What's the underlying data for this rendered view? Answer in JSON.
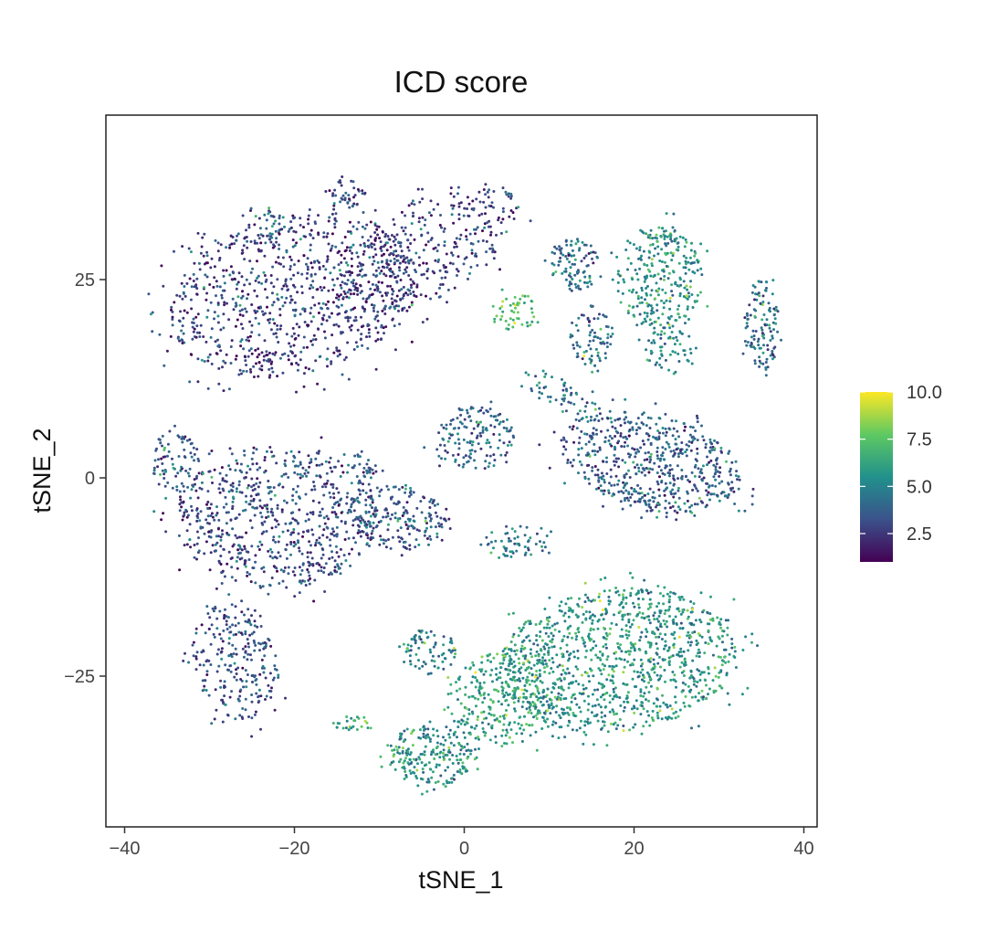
{
  "chart_data": {
    "type": "scatter",
    "title": "ICD score",
    "xlabel": "tSNE_1",
    "ylabel": "tSNE_2",
    "xlim": [
      -41,
      42
    ],
    "ylim": [
      -44,
      46
    ],
    "x_ticks": [
      -40,
      -20,
      0,
      20,
      40
    ],
    "x_tick_labels": [
      "−40",
      "−20",
      "0",
      "20",
      "40"
    ],
    "y_ticks": [
      -25,
      0,
      25
    ],
    "y_tick_labels": [
      "−25",
      "0",
      "25"
    ],
    "grid": false,
    "color_scale": {
      "name": "viridis",
      "range": [
        1,
        10
      ],
      "ticks": [
        2.5,
        5.0,
        7.5,
        10.0
      ],
      "tick_labels": [
        "2.5",
        "5.0",
        "7.5",
        "10.0"
      ],
      "colors": [
        "#440154",
        "#3b528b",
        "#21918c",
        "#5ec962",
        "#fde725"
      ],
      "legend_position": "right"
    },
    "clusters": [
      {
        "cx": -20,
        "cy": 23,
        "rx": 15,
        "ry": 10,
        "angle": 15,
        "n": 900,
        "score": 2.6
      },
      {
        "cx": -4,
        "cy": 29,
        "rx": 12,
        "ry": 6,
        "angle": 32,
        "n": 350,
        "score": 2.7
      },
      {
        "cx": -14,
        "cy": 36,
        "rx": 2.5,
        "ry": 2,
        "angle": 0,
        "n": 40,
        "score": 3.0
      },
      {
        "cx": -24,
        "cy": 32,
        "rx": 3,
        "ry": 2.5,
        "angle": 0,
        "n": 35,
        "score": 3.3
      },
      {
        "cx": -22,
        "cy": -5,
        "rx": 12,
        "ry": 9,
        "angle": 0,
        "n": 700,
        "score": 3.1
      },
      {
        "cx": -8,
        "cy": -5,
        "rx": 6,
        "ry": 4,
        "angle": -10,
        "n": 200,
        "score": 3.3
      },
      {
        "cx": -27,
        "cy": -23,
        "rx": 5,
        "ry": 8,
        "angle": 10,
        "n": 250,
        "score": 3.2
      },
      {
        "cx": -34,
        "cy": 2,
        "rx": 3,
        "ry": 4,
        "angle": 0,
        "n": 80,
        "score": 3.5
      },
      {
        "cx": 1,
        "cy": 5,
        "rx": 5,
        "ry": 4,
        "angle": 0,
        "n": 150,
        "score": 3.8
      },
      {
        "cx": 22,
        "cy": 2,
        "rx": 11,
        "ry": 6,
        "angle": -18,
        "n": 600,
        "score": 3.6
      },
      {
        "cx": 12,
        "cy": 10,
        "rx": 5,
        "ry": 2,
        "angle": -30,
        "n": 60,
        "score": 4.2
      },
      {
        "cx": 13,
        "cy": 27,
        "rx": 3,
        "ry": 3.5,
        "angle": 0,
        "n": 100,
        "score": 4.0
      },
      {
        "cx": 15,
        "cy": 18,
        "rx": 2.5,
        "ry": 4,
        "angle": 0,
        "n": 80,
        "score": 4.2
      },
      {
        "cx": 23,
        "cy": 25,
        "rx": 5,
        "ry": 7,
        "angle": 0,
        "n": 300,
        "score": 5.4
      },
      {
        "cx": 35,
        "cy": 19,
        "rx": 2,
        "ry": 6,
        "angle": 0,
        "n": 120,
        "score": 4.2
      },
      {
        "cx": 6,
        "cy": 21,
        "rx": 3,
        "ry": 2.5,
        "angle": 0,
        "n": 50,
        "score": 7.2
      },
      {
        "cx": 18,
        "cy": -23,
        "rx": 14,
        "ry": 9,
        "angle": 8,
        "n": 1100,
        "score": 5.6
      },
      {
        "cx": 5,
        "cy": -28,
        "rx": 7,
        "ry": 6,
        "angle": 0,
        "n": 300,
        "score": 6.0
      },
      {
        "cx": -4,
        "cy": -35,
        "rx": 5,
        "ry": 4,
        "angle": 0,
        "n": 220,
        "score": 5.5
      },
      {
        "cx": -4,
        "cy": -22,
        "rx": 3,
        "ry": 3,
        "angle": 0,
        "n": 80,
        "score": 4.5
      },
      {
        "cx": 6,
        "cy": -8,
        "rx": 4,
        "ry": 2,
        "angle": 0,
        "n": 60,
        "score": 4.4
      },
      {
        "cx": -13,
        "cy": -31,
        "rx": 2.5,
        "ry": 1,
        "angle": 0,
        "n": 25,
        "score": 6.5
      },
      {
        "cx": -12,
        "cy": 1,
        "rx": 2,
        "ry": 2,
        "angle": 0,
        "n": 30,
        "score": 3.5
      },
      {
        "cx": 24,
        "cy": 16,
        "rx": 3,
        "ry": 3,
        "angle": 0,
        "n": 60,
        "score": 4.6
      }
    ]
  }
}
